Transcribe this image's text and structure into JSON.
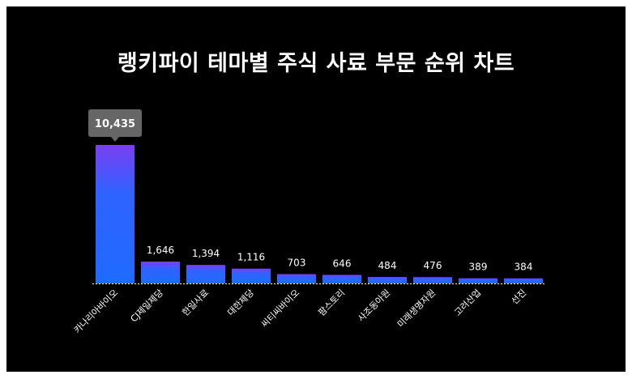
{
  "chart_data": {
    "type": "bar",
    "title": "랭키파이 테마별 주식 사료 부문 순위 차트",
    "categories": [
      "카나리아바이오",
      "CJ제일제당",
      "한일사료",
      "대한제당",
      "씨티씨바이오",
      "팜스토리",
      "사조동아원",
      "미래생명자원",
      "고려산업",
      "선진"
    ],
    "values": [
      10435,
      1646,
      1394,
      1116,
      703,
      646,
      484,
      476,
      389,
      384
    ],
    "value_labels": [
      "10,435",
      "1,646",
      "1,394",
      "1,116",
      "703",
      "646",
      "484",
      "476",
      "389",
      "384"
    ],
    "highlight_index": 0,
    "ylim": [
      0,
      10435
    ],
    "grid": false,
    "legend": "none",
    "colors": {
      "bar_top": "#7b3ff2",
      "bar_bottom": "#1e6bff",
      "background": "#000000",
      "callout": "#666666",
      "text": "#ffffff"
    }
  }
}
